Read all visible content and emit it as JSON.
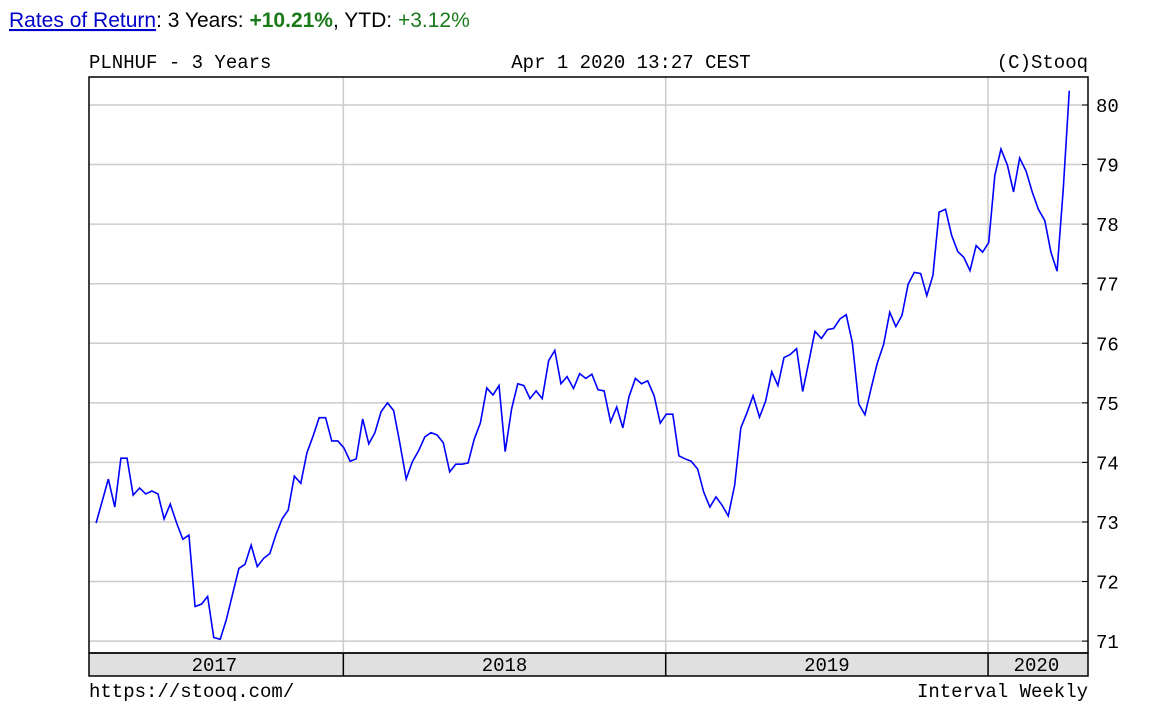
{
  "header": {
    "link": "Rates of Return",
    "period": ": 3 Years: ",
    "period_return": "+10.21%",
    "ytd_label": ", YTD: ",
    "ytd_return": "+3.12%"
  },
  "chart_data": {
    "type": "line",
    "title": "PLNHUF - 3 Years",
    "date": "Apr 1 2020 13:27 CEST",
    "credit": "(C)Stooq",
    "source": "https://stooq.com/",
    "interval": "Interval Weekly",
    "xlim": [
      2017.211,
      2020.31
    ],
    "ylim": [
      70.8,
      80.47
    ],
    "xticks": [
      {
        "value": 2017.6,
        "label": "2017"
      },
      {
        "value": 2018.5,
        "label": "2018"
      },
      {
        "value": 2019.5,
        "label": "2019"
      },
      {
        "value": 2020.15,
        "label": "2020"
      }
    ],
    "xgrid": [
      2018,
      2019,
      2020
    ],
    "yticks": [
      71,
      72,
      73,
      74,
      75,
      76,
      77,
      78,
      79,
      80
    ],
    "grid": true,
    "x": [
      2017.233,
      2017.252,
      2017.271,
      2017.291,
      2017.31,
      2017.329,
      2017.348,
      2017.368,
      2017.387,
      2017.406,
      2017.425,
      2017.444,
      2017.463,
      2017.483,
      2017.502,
      2017.521,
      2017.54,
      2017.56,
      2017.579,
      2017.598,
      2017.618,
      2017.637,
      2017.656,
      2017.676,
      2017.695,
      2017.714,
      2017.733,
      2017.753,
      2017.772,
      2017.791,
      2017.81,
      2017.829,
      2017.848,
      2017.868,
      2017.887,
      2017.906,
      2017.925,
      2017.945,
      2017.964,
      2017.983,
      2018.002,
      2018.021,
      2018.04,
      2018.06,
      2018.079,
      2018.098,
      2018.117,
      2018.137,
      2018.156,
      2018.175,
      2018.195,
      2018.214,
      2018.233,
      2018.253,
      2018.272,
      2018.291,
      2018.31,
      2018.33,
      2018.349,
      2018.368,
      2018.387,
      2018.406,
      2018.425,
      2018.445,
      2018.464,
      2018.483,
      2018.502,
      2018.522,
      2018.541,
      2018.56,
      2018.579,
      2018.598,
      2018.617,
      2018.637,
      2018.656,
      2018.675,
      2018.694,
      2018.714,
      2018.733,
      2018.752,
      2018.771,
      2018.79,
      2018.809,
      2018.829,
      2018.848,
      2018.867,
      2018.886,
      2018.906,
      2018.925,
      2018.944,
      2018.964,
      2018.983,
      2019.002,
      2019.022,
      2019.041,
      2019.06,
      2019.079,
      2019.099,
      2019.118,
      2019.137,
      2019.156,
      2019.175,
      2019.194,
      2019.214,
      2019.233,
      2019.252,
      2019.271,
      2019.291,
      2019.31,
      2019.329,
      2019.348,
      2019.367,
      2019.386,
      2019.406,
      2019.425,
      2019.444,
      2019.463,
      2019.483,
      2019.502,
      2019.521,
      2019.541,
      2019.56,
      2019.579,
      2019.599,
      2019.618,
      2019.637,
      2019.656,
      2019.676,
      2019.695,
      2019.714,
      2019.733,
      2019.752,
      2019.771,
      2019.791,
      2019.81,
      2019.829,
      2019.848,
      2019.868,
      2019.887,
      2019.906,
      2019.925,
      2019.944,
      2019.963,
      2019.983,
      2020.002,
      2020.021,
      2020.04,
      2020.06,
      2020.079,
      2020.098,
      2020.118,
      2020.137,
      2020.156,
      2020.176,
      2020.195,
      2020.214,
      2020.233,
      2020.252
    ],
    "series": [
      {
        "name": "PLNHUF",
        "color": "#0000ff",
        "values": [
          72.98,
          73.35,
          73.72,
          73.25,
          74.07,
          74.07,
          73.45,
          73.57,
          73.47,
          73.52,
          73.47,
          73.05,
          73.3,
          72.98,
          72.71,
          72.78,
          71.58,
          71.62,
          71.75,
          71.06,
          71.03,
          71.36,
          71.78,
          72.22,
          72.29,
          72.61,
          72.25,
          72.39,
          72.47,
          72.79,
          73.05,
          73.2,
          73.77,
          73.65,
          74.16,
          74.44,
          74.75,
          74.75,
          74.36,
          74.36,
          74.24,
          74.02,
          74.06,
          74.73,
          74.31,
          74.5,
          74.85,
          75.0,
          74.87,
          74.33,
          73.72,
          74.01,
          74.19,
          74.43,
          74.5,
          74.46,
          74.33,
          73.84,
          73.97,
          73.97,
          73.99,
          74.39,
          74.66,
          75.25,
          75.13,
          75.29,
          74.18,
          74.9,
          75.32,
          75.29,
          75.07,
          75.2,
          75.07,
          75.71,
          75.88,
          75.32,
          75.44,
          75.24,
          75.49,
          75.41,
          75.48,
          75.22,
          75.2,
          74.68,
          74.93,
          74.58,
          75.1,
          75.41,
          75.32,
          75.37,
          75.12,
          74.66,
          74.81,
          74.81,
          74.11,
          74.06,
          74.02,
          73.89,
          73.5,
          73.25,
          73.42,
          73.28,
          73.1,
          73.62,
          74.58,
          74.83,
          75.12,
          74.76,
          75.03,
          75.52,
          75.29,
          75.76,
          75.81,
          75.91,
          75.19,
          75.69,
          76.2,
          76.08,
          76.23,
          76.25,
          76.41,
          76.48,
          76.01,
          74.98,
          74.8,
          75.24,
          75.66,
          75.98,
          76.52,
          76.28,
          76.47,
          76.99,
          77.19,
          77.17,
          76.8,
          77.14,
          78.2,
          78.25,
          77.81,
          77.54,
          77.44,
          77.22,
          77.64,
          77.53,
          77.69,
          78.82,
          79.26,
          78.99,
          78.54,
          79.11,
          78.89,
          78.54,
          78.25,
          78.06,
          77.53,
          77.21,
          78.57,
          80.24
        ]
      }
    ]
  }
}
